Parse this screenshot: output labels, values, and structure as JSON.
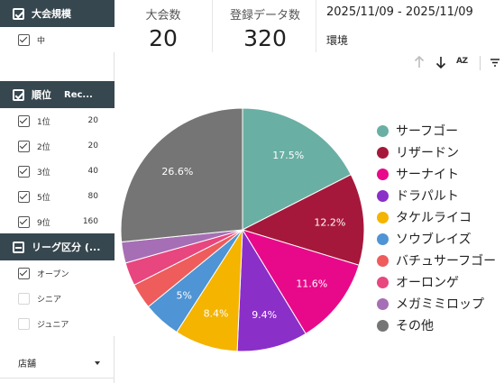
{
  "filters": {
    "scale": {
      "header": "大会規模",
      "items": [
        {
          "label": "中",
          "checked": true
        }
      ]
    },
    "rank": {
      "header": "順位",
      "header_col2": "Rec...",
      "items": [
        {
          "label": "1位",
          "value": "20"
        },
        {
          "label": "2位",
          "value": "20"
        },
        {
          "label": "3位",
          "value": "40"
        },
        {
          "label": "5位",
          "value": "80"
        },
        {
          "label": "9位",
          "value": "160"
        }
      ]
    },
    "league": {
      "header": "リーグ区分 (...",
      "items": [
        {
          "label": "オープン",
          "checked": true
        },
        {
          "label": "シニア",
          "checked": false
        },
        {
          "label": "ジュニア",
          "checked": false
        }
      ]
    },
    "store": {
      "label": "店舗"
    }
  },
  "scorecards": [
    {
      "label": "大会数",
      "value": "20"
    },
    {
      "label": "登録データ数",
      "value": "320"
    }
  ],
  "date_range": "2025/11/09 - 2025/11/09",
  "environment_label": "環境",
  "toolbar": {
    "sort_up_icon": "arrow-up-icon",
    "sort_down_icon": "arrow-down-icon",
    "az_label": "AZ",
    "filter_icon": "filter-icon"
  },
  "chart_data": {
    "type": "pie",
    "title": "",
    "series": [
      {
        "name": "サーフゴー",
        "value": 17.5,
        "color": "#6aafa3",
        "label": "17.5%"
      },
      {
        "name": "リザードン",
        "value": 12.2,
        "color": "#a6183b",
        "label": "12.2%"
      },
      {
        "name": "サーナイト",
        "value": 11.6,
        "color": "#e8098a",
        "label": "11.6%"
      },
      {
        "name": "ドラパルト",
        "value": 9.4,
        "color": "#8b2fc9",
        "label": "9.4%"
      },
      {
        "name": "タケルライコ",
        "value": 8.4,
        "color": "#f4b400",
        "label": "8.4%"
      },
      {
        "name": "ソウブレイズ",
        "value": 5.0,
        "color": "#4f94d4",
        "label": "5%"
      },
      {
        "name": "バチュサーフゴー",
        "value": 3.4,
        "color": "#ee5c5c",
        "label": ""
      },
      {
        "name": "オーロンゲ",
        "value": 3.1,
        "color": "#e8467f",
        "label": ""
      },
      {
        "name": "メガミミロップ",
        "value": 2.8,
        "color": "#a66fb5",
        "label": ""
      },
      {
        "name": "その他",
        "value": 26.6,
        "color": "#757575",
        "label": "26.6%"
      }
    ],
    "legend_position": "right"
  }
}
